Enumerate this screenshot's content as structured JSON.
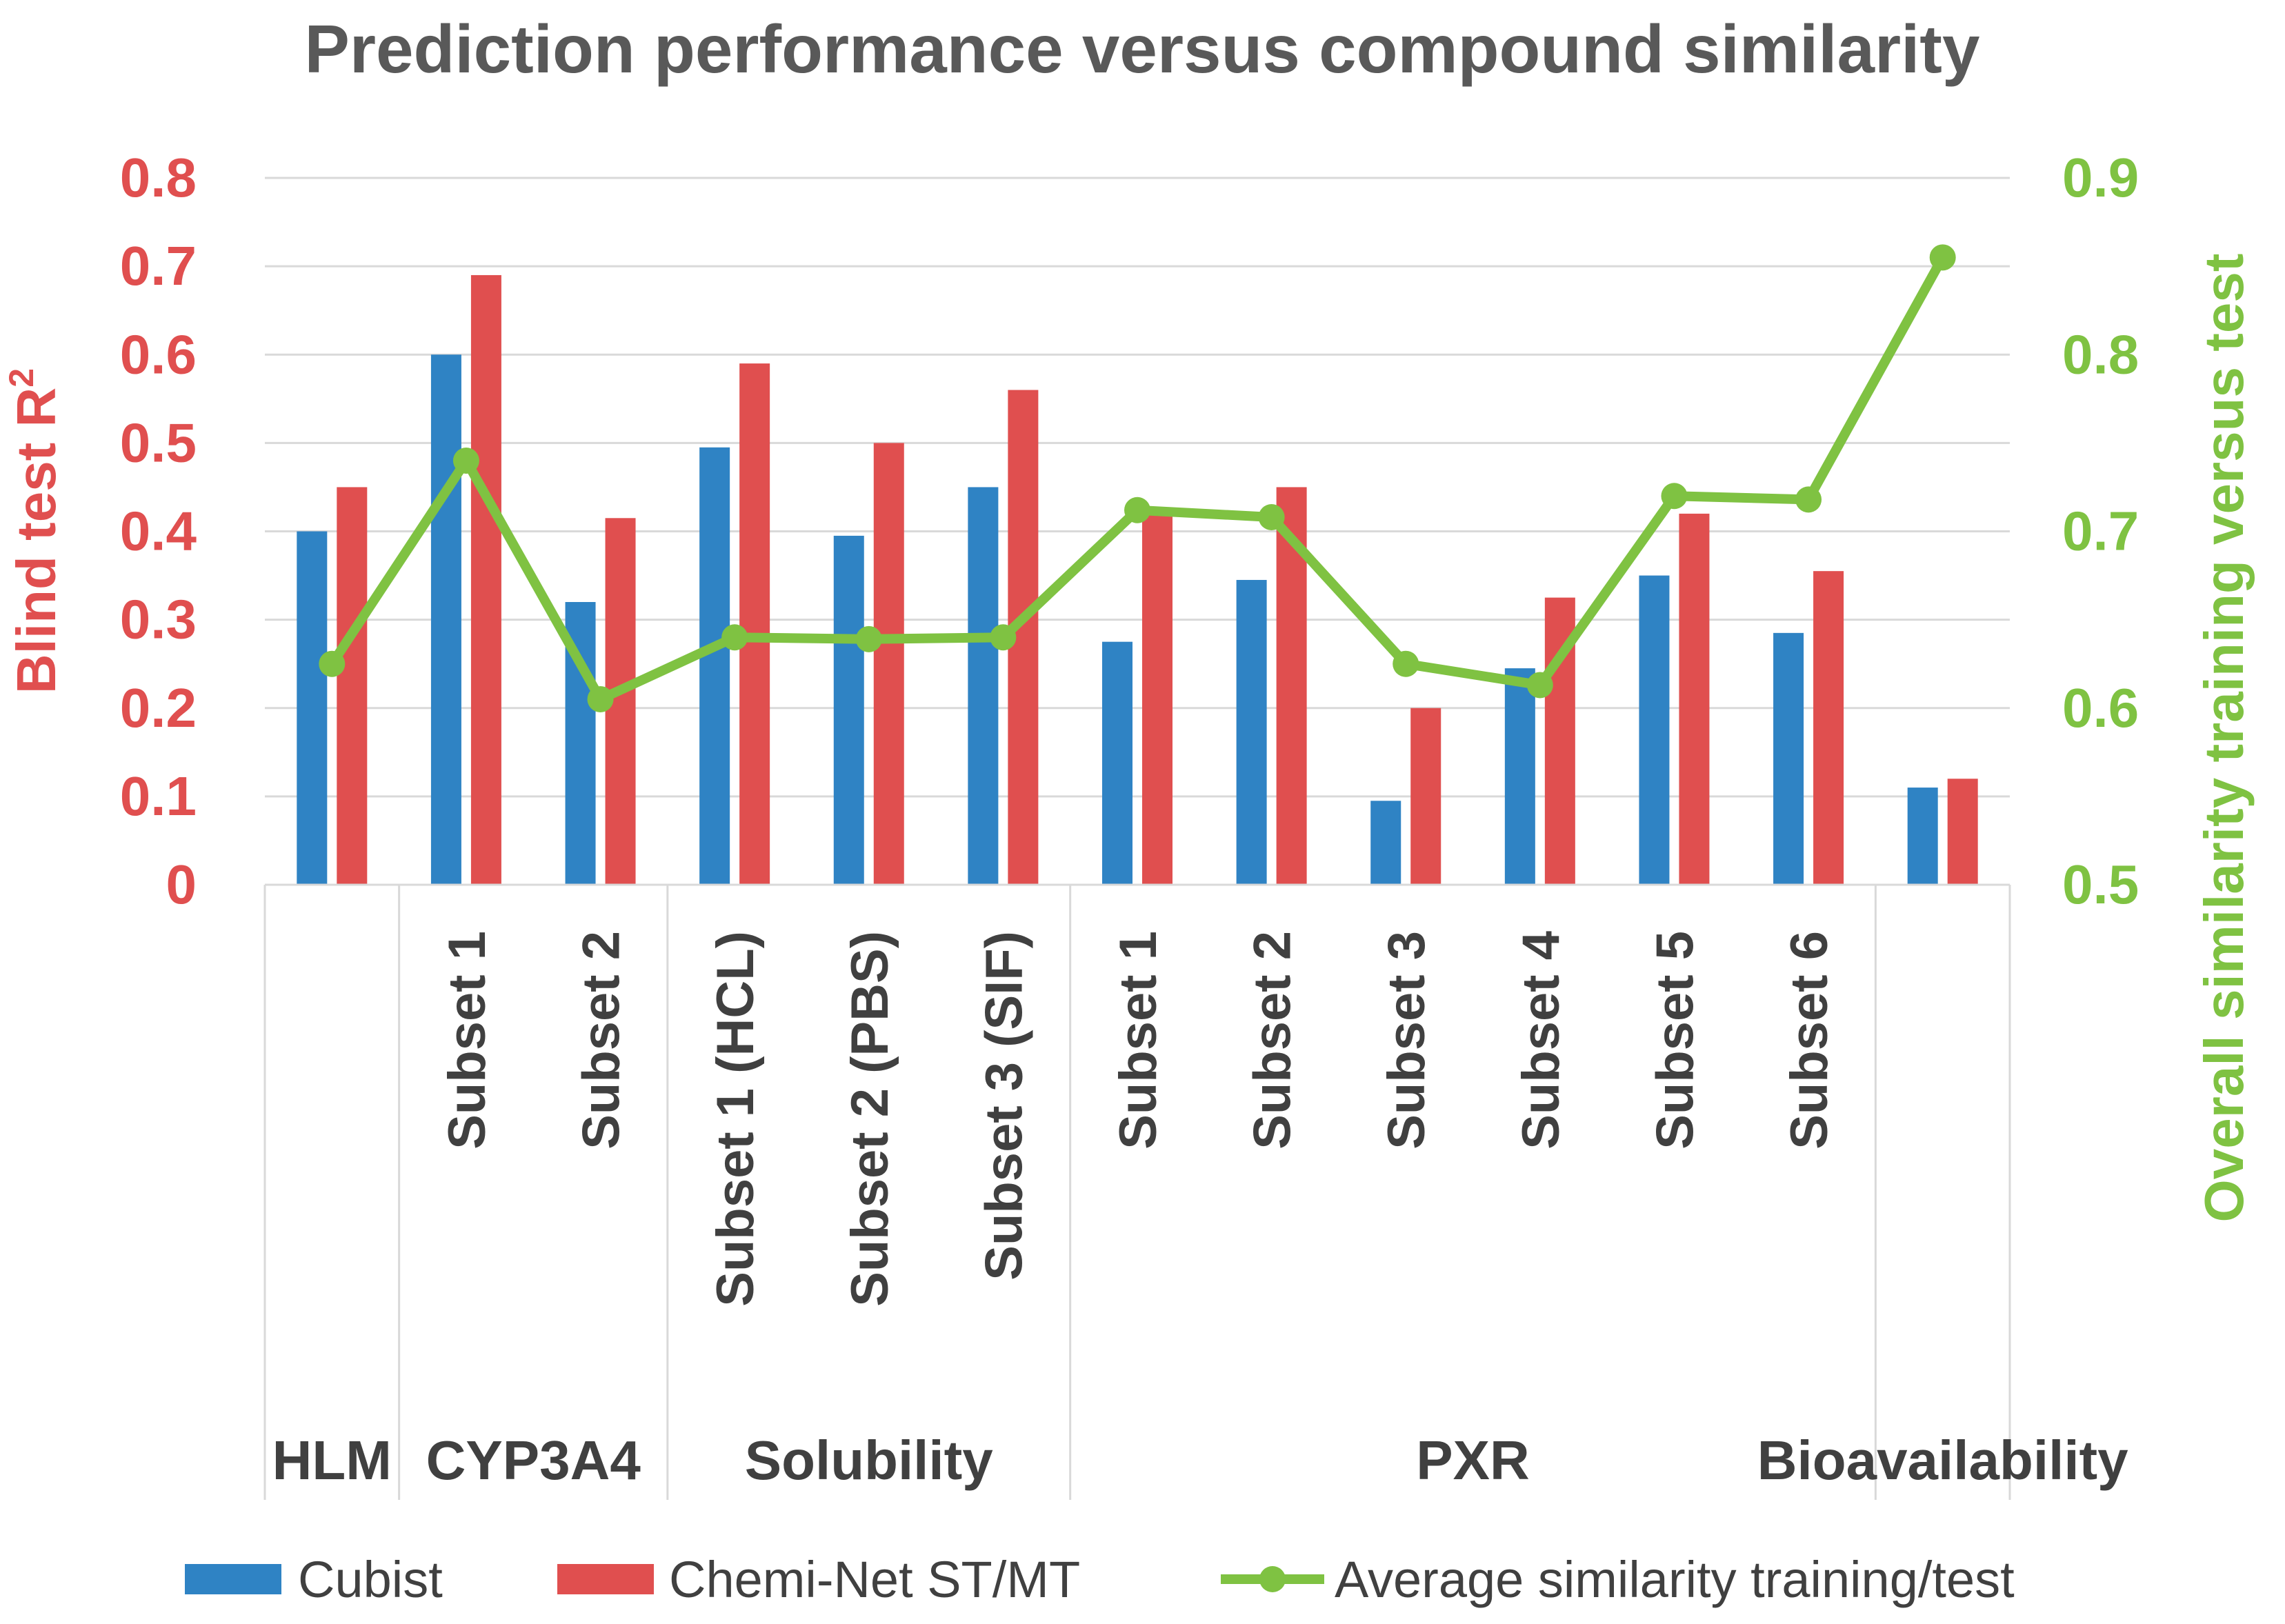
{
  "chart_data": {
    "type": "bar",
    "title": "Prediction performance versus compound similarity",
    "ylabel": "Blind test R",
    "ylabel_superscript": "2",
    "y2label": "Overall similarity training versus test",
    "ylim": [
      0,
      0.8
    ],
    "y2lim": [
      0.5,
      0.9
    ],
    "yticks": [
      "0",
      "0.1",
      "0.2",
      "0.3",
      "0.4",
      "0.5",
      "0.6",
      "0.7",
      "0.8"
    ],
    "y2ticks": [
      "0.5",
      "0.6",
      "0.7",
      "0.8",
      "0.9"
    ],
    "grid": true,
    "legend_position": "bottom",
    "categories": [
      "",
      "Subset 1",
      "Subset 2",
      "Subset 1 (HCL)",
      "Subset 2 (PBS)",
      "Subset 3 (SIF)",
      "Subset 1",
      "Subset 2",
      "Subset 3",
      "Subset 4",
      "Subset 5",
      "Subset 6",
      ""
    ],
    "groups": [
      {
        "label": "HLM",
        "span": 1
      },
      {
        "label": "CYP3A4",
        "span": 2
      },
      {
        "label": "Solubility",
        "span": 3
      },
      {
        "label": "PXR",
        "span": 6
      },
      {
        "label": "Bioavailability",
        "span": 1
      }
    ],
    "series": [
      {
        "name": "Cubist",
        "kind": "bar",
        "axis": "left",
        "color": "#2f83c4",
        "values": [
          0.4,
          0.6,
          0.32,
          0.495,
          0.395,
          0.45,
          0.275,
          0.345,
          0.095,
          0.245,
          0.35,
          0.285,
          0.11
        ]
      },
      {
        "name": "Chemi-Net ST/MT",
        "kind": "bar",
        "axis": "left",
        "color": "#e04f4f",
        "values": [
          0.45,
          0.69,
          0.415,
          0.59,
          0.5,
          0.56,
          0.42,
          0.45,
          0.2,
          0.325,
          0.42,
          0.355,
          0.12
        ]
      },
      {
        "name": "Average similarity training/test",
        "kind": "line",
        "axis": "right",
        "color": "#7fc242",
        "values": [
          0.625,
          0.74,
          0.605,
          0.64,
          0.639,
          0.64,
          0.712,
          0.708,
          0.625,
          0.613,
          0.72,
          0.718,
          0.855
        ]
      }
    ]
  }
}
